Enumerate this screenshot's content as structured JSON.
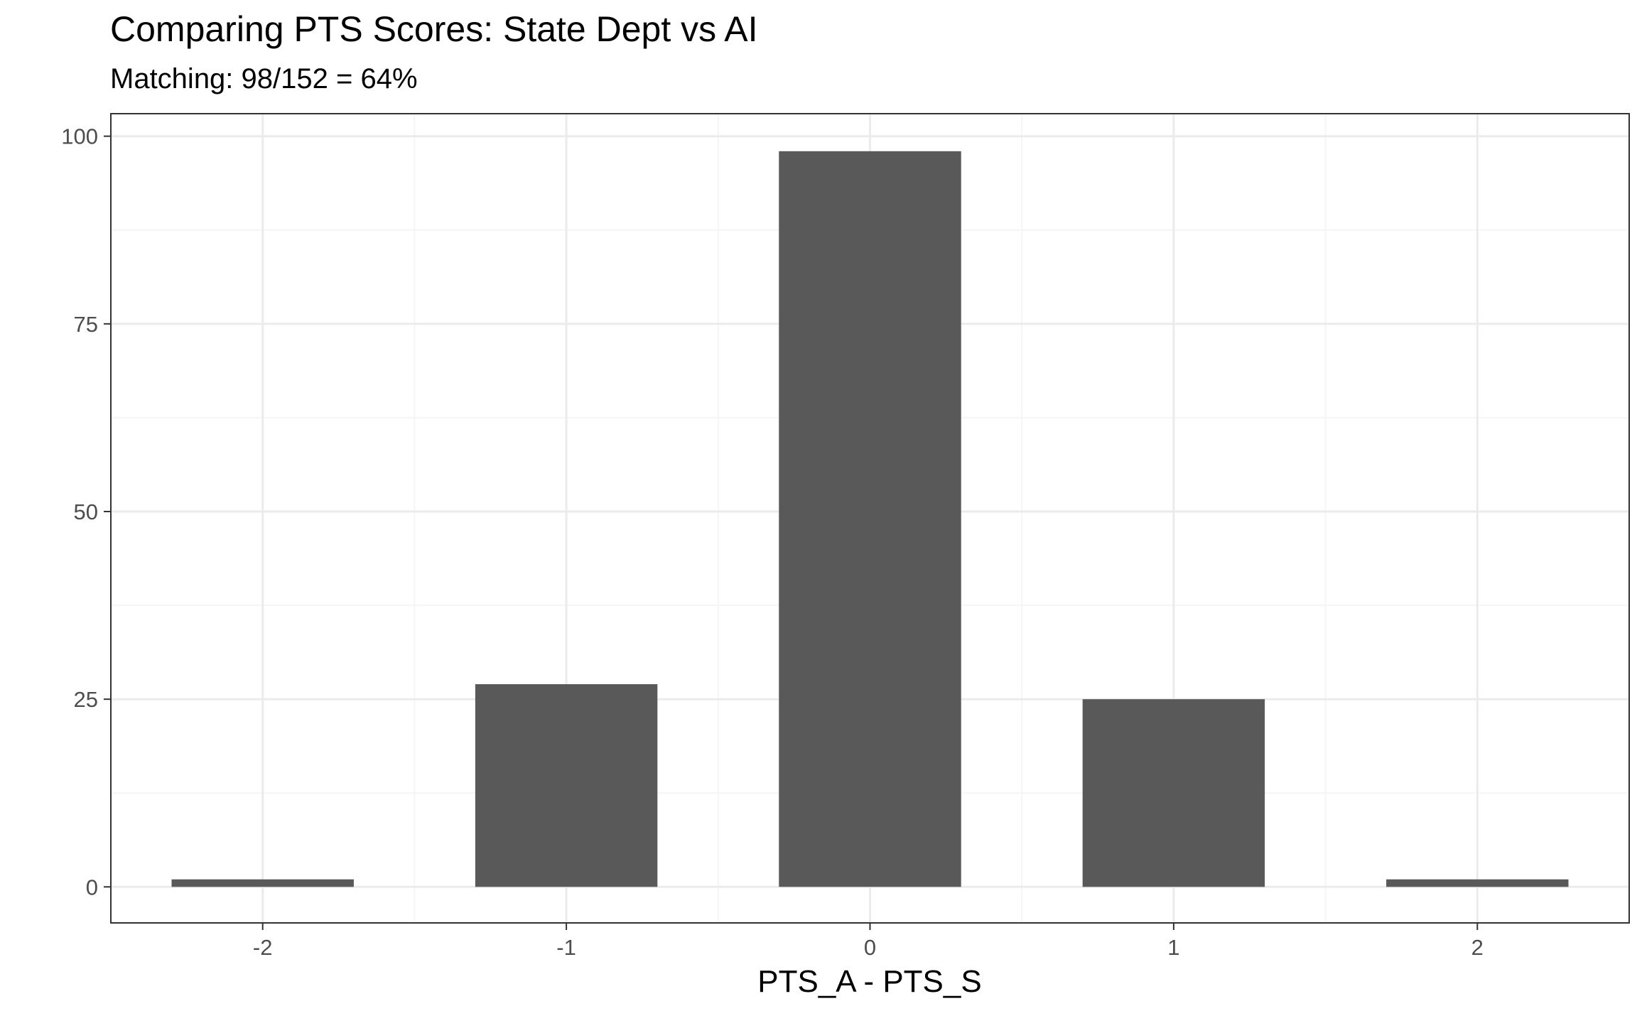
{
  "chart_data": {
    "type": "bar",
    "title": "Comparing PTS Scores: State Dept vs AI",
    "subtitle": "Matching: 98/152 = 64%",
    "xlabel": "PTS_A - PTS_S",
    "ylabel": "",
    "categories": [
      "-2",
      "-1",
      "0",
      "1",
      "2"
    ],
    "x": [
      -2,
      -1,
      0,
      1,
      2
    ],
    "values": [
      1,
      27,
      98,
      25,
      1
    ],
    "xlim": [
      -2.5,
      2.5
    ],
    "ylim": [
      -4.8,
      103
    ],
    "yticks": [
      0,
      25,
      50,
      75,
      100
    ],
    "ytick_labels": [
      "0",
      "25",
      "50",
      "75",
      "100"
    ],
    "xticks": [
      -2,
      -1,
      0,
      1,
      2
    ],
    "xtick_labels": [
      "-2",
      "-1",
      "0",
      "1",
      "2"
    ],
    "grid": true,
    "legend": "none",
    "colors": {
      "bar": "#595959",
      "panel_border": "#333333",
      "grid_major": "#ebebeb",
      "grid_minor": "#f5f5f5"
    }
  }
}
